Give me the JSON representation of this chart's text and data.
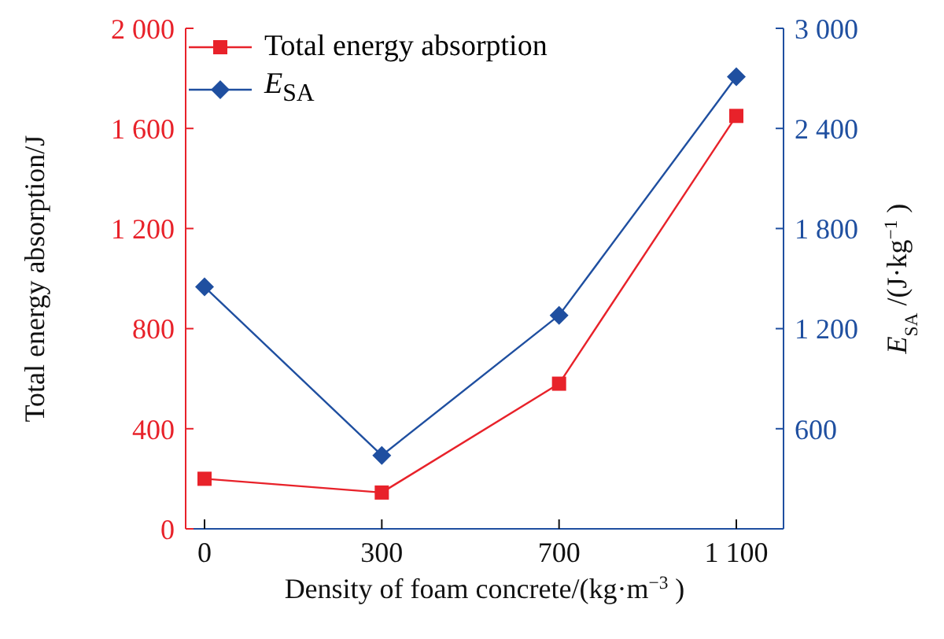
{
  "chart_data": {
    "type": "line",
    "xlabel": "Density of foam concrete/(kg·m$^{−3}$)",
    "ylabel": "Total energy absorption/J",
    "y2label": "E$_{SA}$/(J·kg$^{−1}$)",
    "categories": [
      "0",
      "300",
      "700",
      "1 100"
    ],
    "series": [
      {
        "name": "Total energy absorption",
        "color": "#e8222a",
        "marker": "square",
        "values": [
          200,
          145,
          580,
          1650
        ]
      },
      {
        "name": "E$_{SA}$",
        "color": "#1f4fa0",
        "marker": "diamond",
        "axis": "y2",
        "values": [
          1450,
          440,
          1280,
          2710
        ]
      }
    ],
    "ylim": [
      0,
      2000
    ],
    "yticks": [
      0,
      {
        "value": 400,
        "label": "400"
      },
      {
        "value": 800,
        "label": "800"
      },
      {
        "value": 1200,
        "label": "1 200"
      },
      {
        "value": 1600,
        "label": "1 600"
      },
      {
        "value": 2000,
        "label": "2 000"
      }
    ],
    "y2lim": [
      0,
      3000
    ],
    "y2ticks": [
      {
        "value": 600,
        "label": "600"
      },
      {
        "value": 1200,
        "label": "1 200"
      },
      {
        "value": 1800,
        "label": "1 800"
      },
      {
        "value": 2400,
        "label": "2 400"
      },
      {
        "value": 3000,
        "label": "3 000"
      }
    ],
    "legend": "top left",
    "line_style": "solid"
  }
}
